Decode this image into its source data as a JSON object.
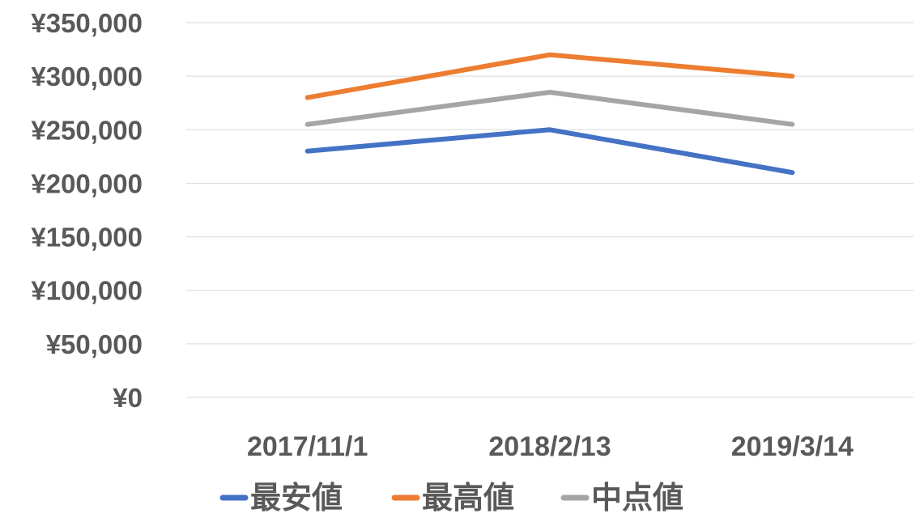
{
  "chart_data": {
    "type": "line",
    "title": "",
    "xlabel": "",
    "ylabel": "",
    "categories": [
      "2017/11/1",
      "2018/2/13",
      "2019/3/14"
    ],
    "ylim": [
      0,
      350000
    ],
    "ytick_step": 50000,
    "ytick_labels": [
      "¥0",
      "¥50,000",
      "¥100,000",
      "¥150,000",
      "¥200,000",
      "¥250,000",
      "¥300,000",
      "¥350,000"
    ],
    "grid": true,
    "legend_position": "bottom",
    "series": [
      {
        "name": "最安値",
        "color": "#4472C4",
        "values": [
          230000,
          250000,
          210000
        ]
      },
      {
        "name": "最高値",
        "color": "#ED7D31",
        "values": [
          280000,
          320000,
          300000
        ]
      },
      {
        "name": "中点値",
        "color": "#A5A5A5",
        "values": [
          255000,
          285000,
          255000
        ]
      }
    ]
  }
}
